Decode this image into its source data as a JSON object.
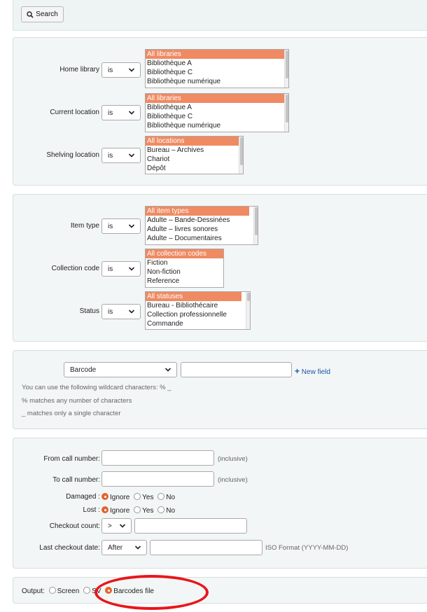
{
  "search_button": {
    "label": "Search"
  },
  "location_group": {
    "rows": [
      {
        "label": "Home library",
        "operator": "is",
        "options": [
          "All libraries",
          "Bibliothèque A",
          "Bibliothèque C",
          "Bibliothèque numérique"
        ]
      },
      {
        "label": "Current location",
        "operator": "is",
        "options": [
          "All libraries",
          "Bibliothèque A",
          "Bibliothèque C",
          "Bibliothèque numérique"
        ]
      },
      {
        "label": "Shelving location",
        "operator": "is",
        "options": [
          "All locations",
          "Bureau – Archives",
          "Chariot",
          "Dépôt"
        ]
      }
    ]
  },
  "type_group": {
    "rows": [
      {
        "label": "Item type",
        "operator": "is",
        "options": [
          "All item types",
          "Adulte – Bande-Dessinées",
          "Adulte – livres sonores",
          "Adulte – Documentaires"
        ]
      },
      {
        "label": "Collection code",
        "operator": "is",
        "options": [
          "All collection codes",
          "Fiction",
          "Non-fiction",
          "Reference"
        ]
      },
      {
        "label": "Status",
        "operator": "is",
        "options": [
          "All statuses",
          "Bureau - Bibliothécaire",
          "Collection professionnelle",
          "Commande"
        ]
      }
    ]
  },
  "barcode_group": {
    "field_select": "Barcode",
    "field_value": "",
    "new_field": "New field",
    "hint_1": "You can use the following wildcard characters: % _",
    "hint_2": "% matches any number of characters",
    "hint_3": "_ matches only a single character"
  },
  "callnum_group": {
    "from_label": "From call number:",
    "from_note": "(inclusive)",
    "to_label": "To call number:",
    "to_note": "(inclusive)",
    "damaged_label": "Damaged :",
    "lost_label": "Lost :",
    "radio_ignore": "Ignore",
    "radio_yes": "Yes",
    "radio_no": "No",
    "damaged_selected": "Ignore",
    "lost_selected": "Ignore",
    "checkout_count_label": "Checkout count:",
    "checkout_count_op": ">",
    "last_checkout_label": "Last checkout date:",
    "last_checkout_op": "After",
    "date_hint": "ISO Format (YYYY-MM-DD)"
  },
  "output_group": {
    "label": "Output:",
    "opt_screen": "Screen",
    "opt_csv": "SV",
    "opt_barcodes": "Barcodes file",
    "selected": "Barcodes file"
  },
  "colors": {
    "accent": "#ef8a62",
    "radio_on": "#e2642f",
    "annotation": "#e8161b",
    "link": "#1a55a8"
  }
}
